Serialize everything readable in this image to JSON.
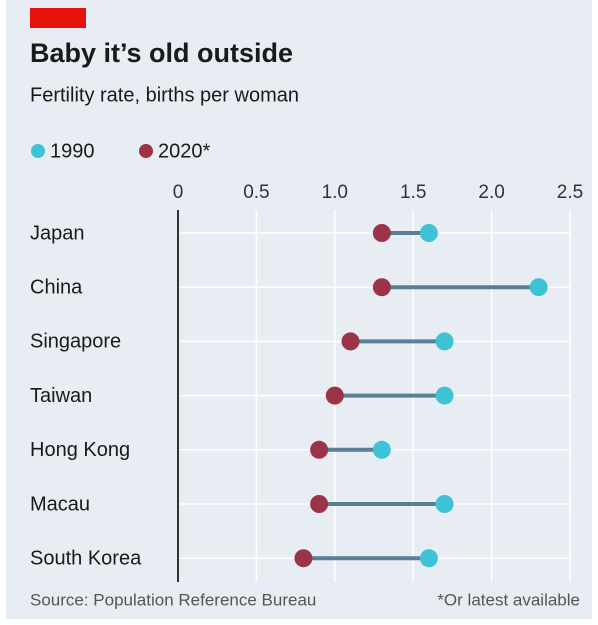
{
  "chart_data": {
    "type": "dumbbell",
    "title": "Baby it’s old outside",
    "subtitle": "Fertility rate, births per woman",
    "categories": [
      "Japan",
      "China",
      "Singapore",
      "Taiwan",
      "Hong Kong",
      "Macau",
      "South Korea"
    ],
    "series": [
      {
        "name": "1990",
        "color": "#3fc2d4",
        "values": [
          1.6,
          2.3,
          1.7,
          1.7,
          1.3,
          1.7,
          1.6
        ]
      },
      {
        "name": "2020*",
        "color": "#9c3347",
        "values": [
          1.3,
          1.3,
          1.1,
          1.0,
          0.9,
          0.9,
          0.8
        ]
      }
    ],
    "xlim": [
      0,
      2.5
    ],
    "xticks": [
      0,
      0.5,
      {
        "value": 1,
        "label": "1.0"
      },
      1.5,
      {
        "value": 2,
        "label": "2.0"
      },
      2.5
    ],
    "grid": true,
    "source": "Source: Population Reference Bureau",
    "note": "*Or latest available"
  }
}
